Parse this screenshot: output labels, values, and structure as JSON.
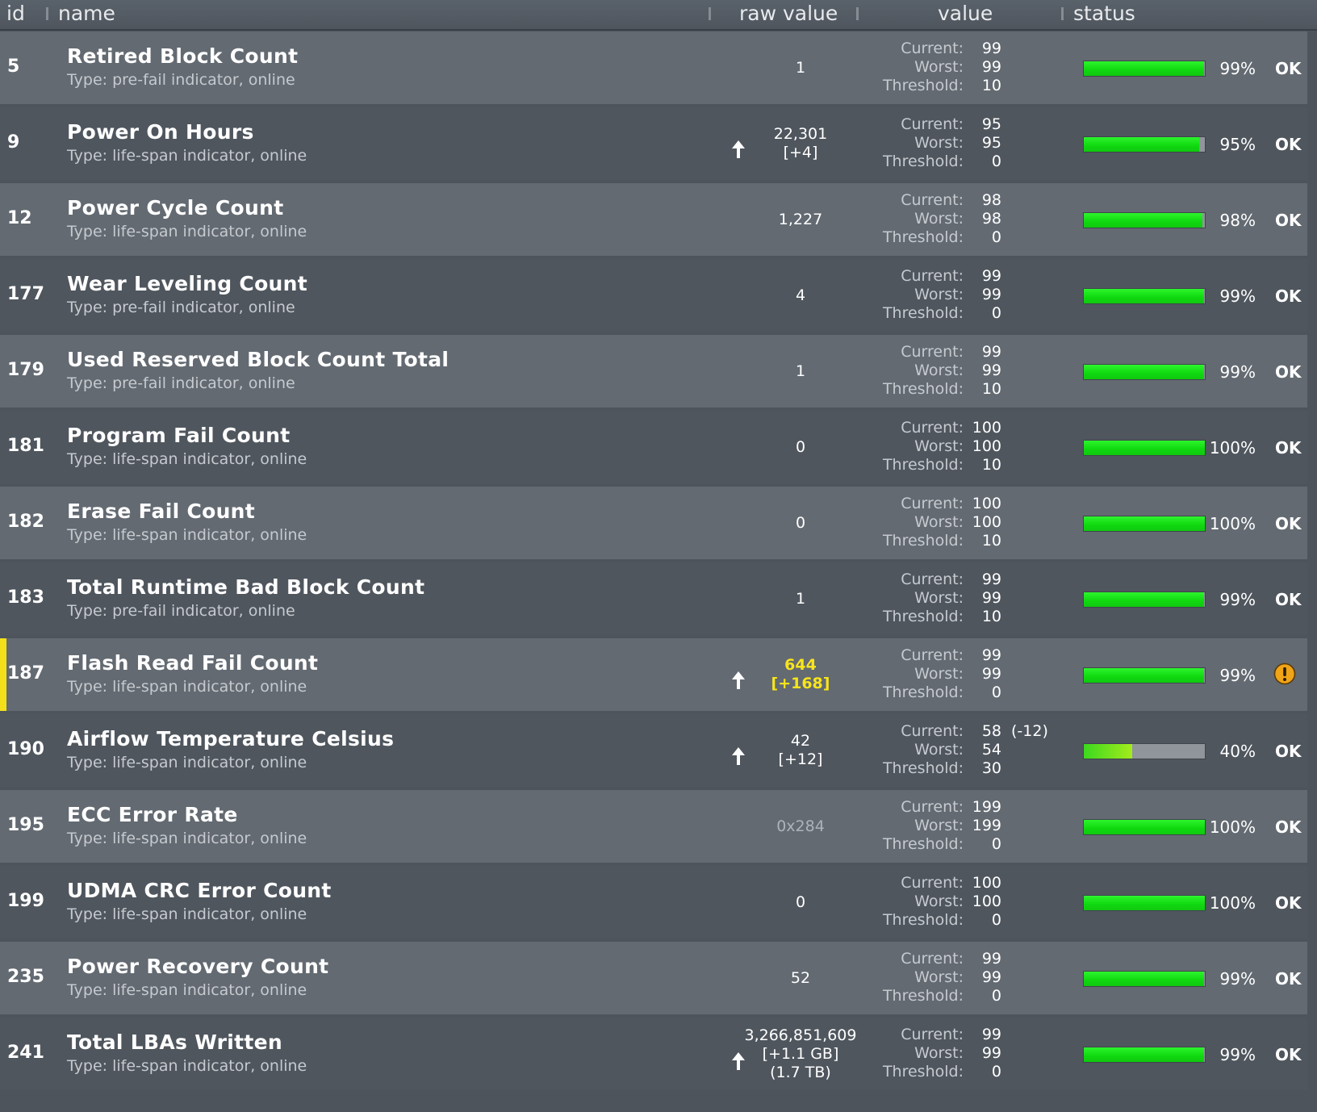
{
  "header": {
    "id": "id",
    "name": "name",
    "raw_value": "raw value",
    "value": "value",
    "status": "status"
  },
  "value_labels": {
    "current": "Current:",
    "worst": "Worst:",
    "threshold": "Threshold:"
  },
  "colors": {
    "bar_fill": "#1ed81e",
    "bar_track": "#8f959b",
    "warning_marker": "#f4e01a",
    "warning_icon": "#f0a417",
    "highlight_text": "#f8e41c"
  },
  "rows": [
    {
      "id": "5",
      "name": "Retired Block Count",
      "type": "Type: pre-fail indicator, online",
      "raw": [
        "1"
      ],
      "raw_style": "normal",
      "trend_up": false,
      "current": "99",
      "worst": "99",
      "threshold": "10",
      "delta": "",
      "level": 0.99,
      "pct": "99%",
      "status": "OK",
      "status_icon": "",
      "flag": false
    },
    {
      "id": "9",
      "name": "Power On Hours",
      "type": "Type: life-span indicator, online",
      "raw": [
        "22,301",
        "[+4]"
      ],
      "raw_style": "normal",
      "trend_up": true,
      "current": "95",
      "worst": "95",
      "threshold": "0",
      "delta": "",
      "level": 0.95,
      "pct": "95%",
      "status": "OK",
      "status_icon": "",
      "flag": false
    },
    {
      "id": "12",
      "name": "Power Cycle Count",
      "type": "Type: life-span indicator, online",
      "raw": [
        "1,227"
      ],
      "raw_style": "normal",
      "trend_up": false,
      "current": "98",
      "worst": "98",
      "threshold": "0",
      "delta": "",
      "level": 0.98,
      "pct": "98%",
      "status": "OK",
      "status_icon": "",
      "flag": false
    },
    {
      "id": "177",
      "name": "Wear Leveling Count",
      "type": "Type: pre-fail indicator, online",
      "raw": [
        "4"
      ],
      "raw_style": "normal",
      "trend_up": false,
      "current": "99",
      "worst": "99",
      "threshold": "0",
      "delta": "",
      "level": 0.99,
      "pct": "99%",
      "status": "OK",
      "status_icon": "",
      "flag": false
    },
    {
      "id": "179",
      "name": "Used Reserved Block Count Total",
      "type": "Type: pre-fail indicator, online",
      "raw": [
        "1"
      ],
      "raw_style": "normal",
      "trend_up": false,
      "current": "99",
      "worst": "99",
      "threshold": "10",
      "delta": "",
      "level": 0.99,
      "pct": "99%",
      "status": "OK",
      "status_icon": "",
      "flag": false
    },
    {
      "id": "181",
      "name": "Program Fail Count",
      "type": "Type: life-span indicator, online",
      "raw": [
        "0"
      ],
      "raw_style": "normal",
      "trend_up": false,
      "current": "100",
      "worst": "100",
      "threshold": "10",
      "delta": "",
      "level": 1.0,
      "pct": "100%",
      "status": "OK",
      "status_icon": "",
      "flag": false
    },
    {
      "id": "182",
      "name": "Erase Fail Count",
      "type": "Type: life-span indicator, online",
      "raw": [
        "0"
      ],
      "raw_style": "normal",
      "trend_up": false,
      "current": "100",
      "worst": "100",
      "threshold": "10",
      "delta": "",
      "level": 1.0,
      "pct": "100%",
      "status": "OK",
      "status_icon": "",
      "flag": false
    },
    {
      "id": "183",
      "name": "Total Runtime Bad Block Count",
      "type": "Type: pre-fail indicator, online",
      "raw": [
        "1"
      ],
      "raw_style": "normal",
      "trend_up": false,
      "current": "99",
      "worst": "99",
      "threshold": "10",
      "delta": "",
      "level": 0.99,
      "pct": "99%",
      "status": "OK",
      "status_icon": "",
      "flag": false
    },
    {
      "id": "187",
      "name": "Flash Read Fail Count",
      "type": "Type: life-span indicator, online",
      "raw": [
        "644",
        "[+168]"
      ],
      "raw_style": "highlight",
      "trend_up": true,
      "current": "99",
      "worst": "99",
      "threshold": "0",
      "delta": "",
      "level": 0.99,
      "pct": "99%",
      "status": "",
      "status_icon": "warning-icon",
      "flag": true
    },
    {
      "id": "190",
      "name": "Airflow Temperature Celsius",
      "type": "Type: life-span indicator, online",
      "raw": [
        "42",
        "[+12]"
      ],
      "raw_style": "normal",
      "trend_up": true,
      "current": "58",
      "worst": "54",
      "threshold": "30",
      "delta": "(-12)",
      "level": 0.4,
      "pct": "40%",
      "status": "OK",
      "status_icon": "",
      "flag": false
    },
    {
      "id": "195",
      "name": "ECC Error Rate",
      "type": "Type: life-span indicator, online",
      "raw": [
        "0x284"
      ],
      "raw_style": "dim",
      "trend_up": false,
      "current": "199",
      "worst": "199",
      "threshold": "0",
      "delta": "",
      "level": 1.0,
      "pct": "100%",
      "status": "OK",
      "status_icon": "",
      "flag": false
    },
    {
      "id": "199",
      "name": "UDMA CRC Error Count",
      "type": "Type: life-span indicator, online",
      "raw": [
        "0"
      ],
      "raw_style": "normal",
      "trend_up": false,
      "current": "100",
      "worst": "100",
      "threshold": "0",
      "delta": "",
      "level": 1.0,
      "pct": "100%",
      "status": "OK",
      "status_icon": "",
      "flag": false
    },
    {
      "id": "235",
      "name": "Power Recovery Count",
      "type": "Type: life-span indicator, online",
      "raw": [
        "52"
      ],
      "raw_style": "normal",
      "trend_up": false,
      "current": "99",
      "worst": "99",
      "threshold": "0",
      "delta": "",
      "level": 0.99,
      "pct": "99%",
      "status": "OK",
      "status_icon": "",
      "flag": false
    },
    {
      "id": "241",
      "name": "Total LBAs Written",
      "type": "Type: life-span indicator, online",
      "raw": [
        "3,266,851,609",
        "[+1.1 GB]",
        "(1.7 TB)"
      ],
      "raw_style": "normal",
      "trend_up": true,
      "current": "99",
      "worst": "99",
      "threshold": "0",
      "delta": "",
      "level": 0.99,
      "pct": "99%",
      "status": "OK",
      "status_icon": "",
      "flag": false
    }
  ]
}
